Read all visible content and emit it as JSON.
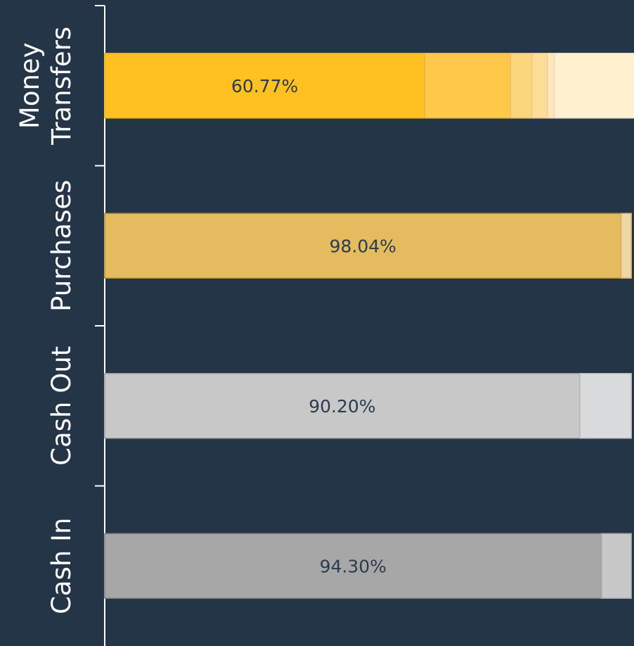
{
  "chart_data": {
    "type": "bar",
    "orientation": "horizontal",
    "stacked": true,
    "normalized": true,
    "x_visible_range": [
      0,
      100.5
    ],
    "categories": [
      {
        "name": "Money\nTransfers",
        "label_lines": [
          "Money",
          "Transfers"
        ],
        "segments": [
          60.77,
          16.3,
          4.0,
          3.0,
          1.3,
          15.63
        ],
        "colors": [
          "#ffc022",
          "#ffc84a",
          "#fcd67a",
          "#fcdd98",
          "#fde8b8",
          "#fff0cf"
        ],
        "strokes": [
          "#ebae14",
          "#ebb43c",
          "#e8c06c",
          "#e8c888",
          "#e9d3a6",
          "#ebdcc0"
        ],
        "label": "60.77%"
      },
      {
        "name": "Purchases",
        "label_lines": [
          "Purchases"
        ],
        "segments": [
          98.04,
          1.96
        ],
        "colors": [
          "#e4bb5e",
          "#efd6a2"
        ],
        "strokes": [
          "#b48c24",
          "#d0b070"
        ],
        "label": "98.04%"
      },
      {
        "name": "Cash Out",
        "label_lines": [
          "Cash Out"
        ],
        "segments": [
          90.2,
          9.8
        ],
        "colors": [
          "#c7c8c7",
          "#d9dadb"
        ],
        "strokes": [
          "#9a9b9b",
          "#b7b8b9"
        ],
        "label": "90.20%"
      },
      {
        "name": "Cash In",
        "label_lines": [
          "Cash In"
        ],
        "segments": [
          94.3,
          5.7
        ],
        "colors": [
          "#a6a7a6",
          "#c6c7c6"
        ],
        "strokes": [
          "#7e7f7f",
          "#a3a4a4"
        ],
        "label": "94.30%"
      }
    ],
    "colors": {
      "background": "#233546",
      "axis": "#ffffff",
      "category_text": "#ffffff",
      "value_text": "#2a3c4d"
    }
  }
}
